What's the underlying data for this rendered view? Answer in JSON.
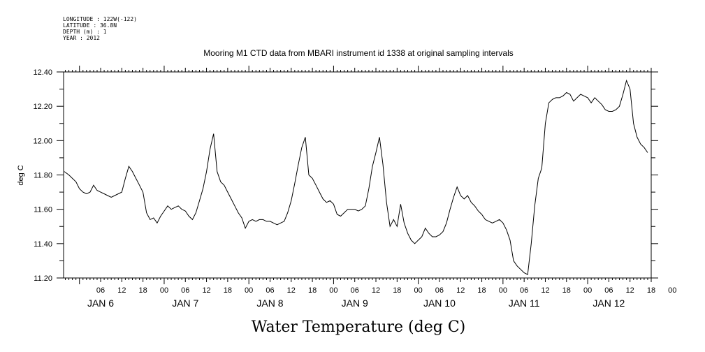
{
  "metadata": [
    {
      "key": "longitude",
      "text": "LONGITUDE : 122W(-122)"
    },
    {
      "key": "latitude",
      "text": "LATITUDE : 36.8N"
    },
    {
      "key": "depth",
      "text": "DEPTH (m) : 1"
    },
    {
      "key": "year",
      "text": "YEAR : 2012"
    }
  ],
  "chart_data": {
    "type": "line",
    "title": "Mooring M1 CTD data from MBARI instrument id 1338 at original sampling intervals",
    "xlabel": "Water Temperature (deg C)",
    "ylabel": "deg C",
    "ylim": [
      11.2,
      12.4
    ],
    "y_ticks": [
      "11.20",
      "11.40",
      "11.60",
      "11.80",
      "12.00",
      "12.20",
      "12.40"
    ],
    "x_unit": "hours since JAN 6 00:00",
    "xlim": [
      -4.5,
      162
    ],
    "x_hour_ticks": [
      "06",
      "12",
      "18",
      "00",
      "06",
      "12",
      "18",
      "00",
      "06",
      "12",
      "18",
      "00",
      "06",
      "12",
      "18",
      "00",
      "06",
      "12",
      "18",
      "00",
      "06",
      "12",
      "18",
      "00",
      "06",
      "12",
      "18",
      "00"
    ],
    "x_day_labels": [
      "JAN  6",
      "JAN  7",
      "JAN  8",
      "JAN  9",
      "JAN 10",
      "JAN 11",
      "JAN 12"
    ],
    "grid": false,
    "series": [
      {
        "color": "#000000",
        "x": [
          -4.3,
          -3,
          -2,
          -1,
          0,
          1,
          2,
          3,
          4,
          5,
          6,
          7,
          8,
          9,
          10,
          11,
          12,
          13,
          14,
          15,
          16,
          17,
          18,
          19,
          20,
          21,
          22,
          23,
          24,
          25,
          26,
          27,
          28,
          29,
          30,
          31,
          32,
          33,
          34,
          35,
          36,
          37,
          38,
          39,
          40,
          41,
          42,
          43,
          44,
          45,
          46,
          47,
          48,
          49,
          50,
          51,
          52,
          53,
          54,
          55,
          56,
          57,
          58,
          59,
          60,
          61,
          62,
          63,
          64,
          65,
          66,
          67,
          68,
          69,
          70,
          71,
          72,
          73,
          74,
          75,
          76,
          77,
          78,
          79,
          80,
          81,
          82,
          83,
          84,
          85,
          86,
          87,
          88,
          89,
          90,
          91,
          92,
          93,
          94,
          95,
          96,
          97,
          98,
          99,
          100,
          101,
          102,
          103,
          104,
          105,
          106,
          107,
          108,
          109,
          110,
          111,
          112,
          113,
          114,
          115,
          116,
          117,
          118,
          119,
          120,
          121,
          122,
          123,
          124,
          125,
          126,
          127,
          128,
          129,
          130,
          131,
          132,
          133,
          134,
          135,
          136,
          137,
          138,
          139,
          140,
          141,
          142,
          143,
          144,
          145,
          146,
          147,
          148,
          149,
          150,
          151,
          152,
          153,
          154,
          155,
          156,
          157,
          158,
          159,
          160,
          161
        ],
        "values": [
          11.82,
          11.8,
          11.78,
          11.76,
          11.72,
          11.7,
          11.69,
          11.7,
          11.74,
          11.71,
          11.7,
          11.69,
          11.68,
          11.67,
          11.68,
          11.69,
          11.7,
          11.78,
          11.85,
          11.82,
          11.78,
          11.74,
          11.7,
          11.58,
          11.54,
          11.55,
          11.52,
          11.56,
          11.59,
          11.62,
          11.6,
          11.61,
          11.62,
          11.6,
          11.59,
          11.56,
          11.54,
          11.58,
          11.65,
          11.72,
          11.82,
          11.95,
          12.04,
          11.82,
          11.76,
          11.74,
          11.7,
          11.66,
          11.62,
          11.58,
          11.55,
          11.49,
          11.53,
          11.54,
          11.53,
          11.54,
          11.54,
          11.53,
          11.53,
          11.52,
          11.51,
          11.52,
          11.53,
          11.58,
          11.65,
          11.75,
          11.86,
          11.96,
          12.02,
          11.8,
          11.78,
          11.74,
          11.7,
          11.66,
          11.64,
          11.65,
          11.63,
          11.57,
          11.56,
          11.58,
          11.6,
          11.6,
          11.6,
          11.59,
          11.6,
          11.62,
          11.72,
          11.85,
          11.93,
          12.02,
          11.86,
          11.64,
          11.5,
          11.54,
          11.5,
          11.63,
          11.52,
          11.46,
          11.42,
          11.4,
          11.42,
          11.44,
          11.49,
          11.46,
          11.44,
          11.44,
          11.45,
          11.47,
          11.52,
          11.6,
          11.67,
          11.73,
          11.68,
          11.66,
          11.68,
          11.64,
          11.62,
          11.59,
          11.57,
          11.54,
          11.53,
          11.52,
          11.53,
          11.54,
          11.52,
          11.48,
          11.42,
          11.3,
          11.27,
          11.25,
          11.23,
          11.22,
          11.4,
          11.62,
          11.78,
          11.84,
          12.1,
          12.22,
          12.24,
          12.25,
          12.25,
          12.26,
          12.28,
          12.27,
          12.23,
          12.25,
          12.27,
          12.26,
          12.25,
          12.22,
          12.25,
          12.23,
          12.21,
          12.18,
          12.17,
          12.17,
          12.18,
          12.2,
          12.27,
          12.35,
          12.3,
          12.1,
          12.02,
          11.98,
          11.96,
          11.93
        ]
      }
    ]
  }
}
